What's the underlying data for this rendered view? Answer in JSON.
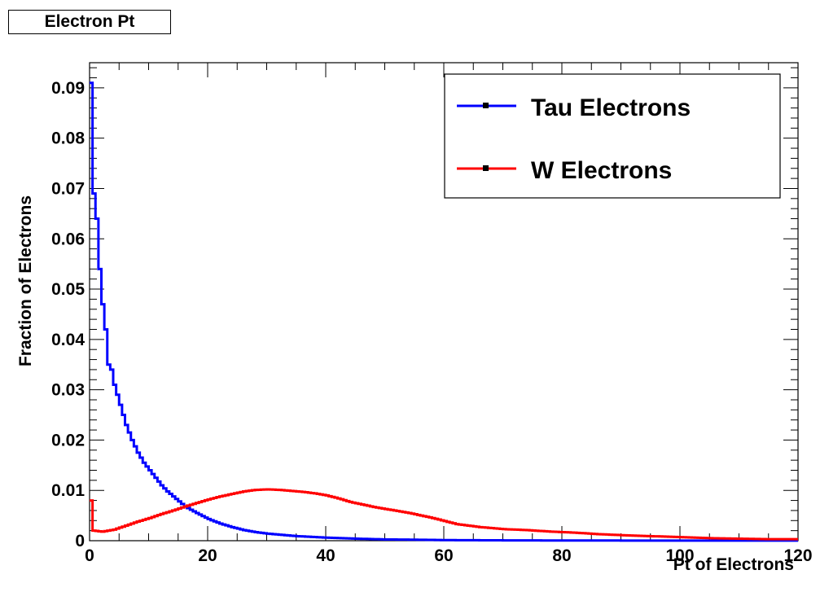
{
  "chart_data": {
    "type": "line",
    "title": "Electron Pt",
    "xlabel": "Pt of Electrons",
    "ylabel": "Fraction of Electrons",
    "xlim": [
      0,
      120
    ],
    "ylim": [
      0,
      0.095
    ],
    "xticks": [
      0,
      20,
      40,
      60,
      80,
      100,
      120
    ],
    "xtick_labels": [
      "0",
      "20",
      "40",
      "60",
      "80",
      "100",
      "120"
    ],
    "yticks": [
      0,
      0.01,
      0.02,
      0.03,
      0.04,
      0.05,
      0.06,
      0.07,
      0.08,
      0.09
    ],
    "ytick_labels": [
      "0",
      "0.01",
      "0.02",
      "0.03",
      "0.04",
      "0.05",
      "0.06",
      "0.07",
      "0.08",
      "0.09"
    ],
    "grid": false,
    "legend_position": "top-right",
    "series": [
      {
        "name": "Tau Electrons",
        "color": "#0000ff",
        "points": [
          [
            0,
            0.091
          ],
          [
            0.5,
            0.069
          ],
          [
            1,
            0.064
          ],
          [
            1.5,
            0.054
          ],
          [
            2,
            0.047
          ],
          [
            2.5,
            0.042
          ],
          [
            3,
            0.035
          ],
          [
            3.5,
            0.034
          ],
          [
            4,
            0.031
          ],
          [
            5,
            0.027
          ],
          [
            6,
            0.023
          ],
          [
            7,
            0.02
          ],
          [
            8,
            0.0175
          ],
          [
            9,
            0.0155
          ],
          [
            10,
            0.014
          ],
          [
            11,
            0.0125
          ],
          [
            12,
            0.011
          ],
          [
            13,
            0.0098
          ],
          [
            14,
            0.0088
          ],
          [
            15,
            0.0078
          ],
          [
            16,
            0.0068
          ],
          [
            18,
            0.0055
          ],
          [
            20,
            0.0043
          ],
          [
            22,
            0.0034
          ],
          [
            24,
            0.0027
          ],
          [
            26,
            0.0021
          ],
          [
            28,
            0.0017
          ],
          [
            30,
            0.0014
          ],
          [
            32,
            0.0012
          ],
          [
            35,
            0.0009
          ],
          [
            40,
            0.0006
          ],
          [
            45,
            0.0004
          ],
          [
            50,
            0.00025
          ],
          [
            55,
            0.0002
          ],
          [
            60,
            0.00012
          ],
          [
            70,
            7e-05
          ],
          [
            80,
            4e-05
          ],
          [
            100,
            2e-05
          ],
          [
            120,
            1e-05
          ]
        ]
      },
      {
        "name": "W Electrons",
        "color": "#ff0000",
        "points": [
          [
            0,
            0.008
          ],
          [
            0.5,
            0.002
          ],
          [
            2,
            0.0018
          ],
          [
            4,
            0.0022
          ],
          [
            6,
            0.003
          ],
          [
            8,
            0.0038
          ],
          [
            10,
            0.0045
          ],
          [
            12,
            0.0053
          ],
          [
            14,
            0.006
          ],
          [
            16,
            0.0068
          ],
          [
            18,
            0.0075
          ],
          [
            20,
            0.0082
          ],
          [
            22,
            0.0088
          ],
          [
            24,
            0.0093
          ],
          [
            26,
            0.0098
          ],
          [
            28,
            0.0101
          ],
          [
            30,
            0.0102
          ],
          [
            32,
            0.0101
          ],
          [
            34,
            0.0099
          ],
          [
            36,
            0.0097
          ],
          [
            38,
            0.0094
          ],
          [
            40,
            0.009
          ],
          [
            42,
            0.0084
          ],
          [
            44,
            0.0077
          ],
          [
            46,
            0.0072
          ],
          [
            48,
            0.0067
          ],
          [
            50,
            0.0063
          ],
          [
            52,
            0.0059
          ],
          [
            54,
            0.0055
          ],
          [
            56,
            0.005
          ],
          [
            58,
            0.0045
          ],
          [
            60,
            0.0039
          ],
          [
            62,
            0.0033
          ],
          [
            64,
            0.003
          ],
          [
            66,
            0.0027
          ],
          [
            68,
            0.0025
          ],
          [
            70,
            0.0023
          ],
          [
            74,
            0.0021
          ],
          [
            78,
            0.0018
          ],
          [
            82,
            0.0016
          ],
          [
            86,
            0.0013
          ],
          [
            90,
            0.0011
          ],
          [
            95,
            0.0009
          ],
          [
            100,
            0.0007
          ],
          [
            105,
            0.0005
          ],
          [
            110,
            0.0004
          ],
          [
            115,
            0.0003
          ],
          [
            120,
            0.0003
          ]
        ]
      }
    ]
  }
}
